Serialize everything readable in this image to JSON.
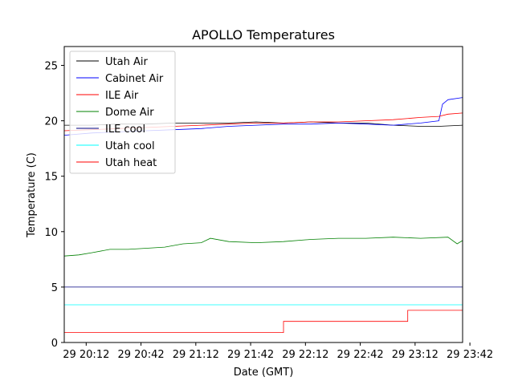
{
  "chart_data": {
    "type": "line",
    "title": "APOLLO Temperatures",
    "xlabel": "Date (GMT)",
    "ylabel": "Temperature (C)",
    "xlim": [
      0,
      218
    ],
    "ylim": [
      0,
      26.7
    ],
    "x_unit": "minutes after 29 20:00 GMT",
    "xticks": [
      {
        "value": 12,
        "label": "29 20:12"
      },
      {
        "value": 42,
        "label": "29 20:42"
      },
      {
        "value": 72,
        "label": "29 21:12"
      },
      {
        "value": 102,
        "label": "29 21:42"
      },
      {
        "value": 132,
        "label": "29 22:12"
      },
      {
        "value": 162,
        "label": "29 22:42"
      },
      {
        "value": 192,
        "label": "29 23:12"
      },
      {
        "value": 222,
        "label": "29 23:42"
      }
    ],
    "yticks": [
      0,
      5,
      10,
      15,
      20,
      25
    ],
    "grid": false,
    "legend_position": "upper-left",
    "series": [
      {
        "name": "Utah Air",
        "color": "#000000",
        "x": [
          0,
          15,
          30,
          45,
          60,
          75,
          90,
          105,
          120,
          135,
          150,
          165,
          180,
          195,
          205,
          218
        ],
        "y": [
          19.6,
          19.6,
          19.7,
          19.7,
          19.8,
          19.8,
          19.8,
          19.9,
          19.8,
          19.9,
          19.8,
          19.8,
          19.6,
          19.5,
          19.5,
          19.6
        ]
      },
      {
        "name": "Cabinet Air",
        "color": "#0000ff",
        "x": [
          0,
          15,
          30,
          45,
          60,
          75,
          90,
          105,
          120,
          135,
          150,
          165,
          180,
          195,
          205,
          207,
          210,
          218
        ],
        "y": [
          18.7,
          18.9,
          19.0,
          19.1,
          19.2,
          19.3,
          19.5,
          19.6,
          19.7,
          19.7,
          19.8,
          19.7,
          19.6,
          19.8,
          20.0,
          21.5,
          21.9,
          22.1
        ]
      },
      {
        "name": "ILE Air",
        "color": "#ff0000",
        "x": [
          0,
          15,
          30,
          45,
          60,
          75,
          90,
          105,
          120,
          135,
          150,
          165,
          180,
          195,
          205,
          210,
          218
        ],
        "y": [
          19.1,
          19.2,
          19.3,
          19.4,
          19.5,
          19.6,
          19.7,
          19.8,
          19.8,
          19.9,
          19.9,
          20.0,
          20.1,
          20.3,
          20.4,
          20.6,
          20.7
        ]
      },
      {
        "name": "Dome Air",
        "color": "#008000",
        "x": [
          0,
          8,
          15,
          25,
          35,
          45,
          55,
          65,
          75,
          80,
          90,
          105,
          120,
          135,
          150,
          165,
          180,
          195,
          210,
          215,
          218
        ],
        "y": [
          7.8,
          7.9,
          8.1,
          8.4,
          8.4,
          8.5,
          8.6,
          8.9,
          9.0,
          9.4,
          9.1,
          9.0,
          9.1,
          9.3,
          9.4,
          9.4,
          9.5,
          9.4,
          9.5,
          8.9,
          9.2
        ]
      },
      {
        "name": "ILE cool",
        "color": "#000080",
        "x": [
          0,
          218
        ],
        "y": [
          5.0,
          5.0
        ]
      },
      {
        "name": "Utah cool",
        "color": "#00ffff",
        "x": [
          0,
          218
        ],
        "y": [
          3.4,
          3.4
        ]
      },
      {
        "name": "Utah heat",
        "color": "#ff0000",
        "x": [
          0,
          120,
          120,
          188,
          188,
          218
        ],
        "y": [
          0.9,
          0.9,
          1.9,
          1.9,
          2.9,
          2.9
        ]
      }
    ]
  }
}
